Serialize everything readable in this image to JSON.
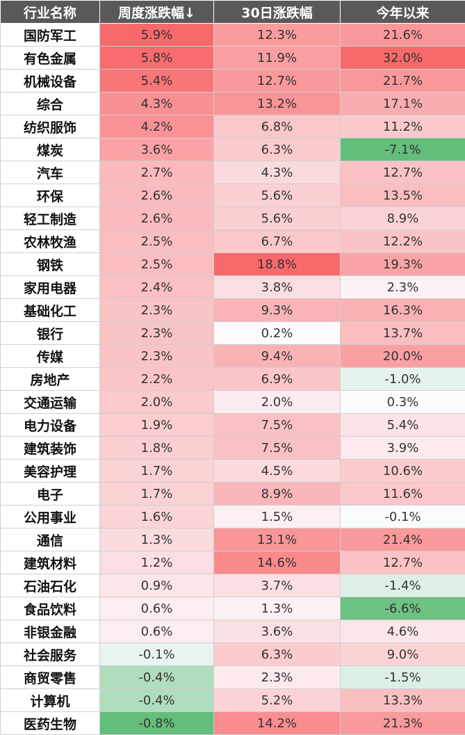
{
  "table": {
    "headers": [
      "行业名称",
      "周度涨跌幅↓",
      "30日涨跌幅",
      "今年以来"
    ],
    "rows": [
      [
        "国防军工",
        "5.9%",
        "12.3%",
        "21.6%"
      ],
      [
        "有色金属",
        "5.8%",
        "11.9%",
        "32.0%"
      ],
      [
        "机械设备",
        "5.4%",
        "12.7%",
        "21.7%"
      ],
      [
        "综合",
        "4.3%",
        "13.2%",
        "17.1%"
      ],
      [
        "纺织服饰",
        "4.2%",
        "6.8%",
        "11.2%"
      ],
      [
        "煤炭",
        "3.6%",
        "6.3%",
        "-7.1%"
      ],
      [
        "汽车",
        "2.7%",
        "4.3%",
        "12.7%"
      ],
      [
        "环保",
        "2.6%",
        "5.6%",
        "13.5%"
      ],
      [
        "轻工制造",
        "2.6%",
        "5.6%",
        "8.9%"
      ],
      [
        "农林牧渔",
        "2.5%",
        "6.7%",
        "12.2%"
      ],
      [
        "钢铁",
        "2.5%",
        "18.8%",
        "19.3%"
      ],
      [
        "家用电器",
        "2.4%",
        "3.8%",
        "2.3%"
      ],
      [
        "基础化工",
        "2.3%",
        "9.3%",
        "16.3%"
      ],
      [
        "银行",
        "2.3%",
        "0.2%",
        "13.7%"
      ],
      [
        "传媒",
        "2.3%",
        "9.4%",
        "20.0%"
      ],
      [
        "房地产",
        "2.2%",
        "6.9%",
        "-1.0%"
      ],
      [
        "交通运输",
        "2.0%",
        "2.0%",
        "0.3%"
      ],
      [
        "电力设备",
        "1.9%",
        "7.5%",
        "5.4%"
      ],
      [
        "建筑装饰",
        "1.8%",
        "7.5%",
        "3.9%"
      ],
      [
        "美容护理",
        "1.7%",
        "4.5%",
        "10.6%"
      ],
      [
        "电子",
        "1.7%",
        "8.9%",
        "11.6%"
      ],
      [
        "公用事业",
        "1.6%",
        "1.5%",
        "-0.1%"
      ],
      [
        "通信",
        "1.3%",
        "13.1%",
        "21.4%"
      ],
      [
        "建筑材料",
        "1.2%",
        "14.6%",
        "12.7%"
      ],
      [
        "石油石化",
        "0.9%",
        "3.7%",
        "-1.4%"
      ],
      [
        "食品饮料",
        "0.6%",
        "1.3%",
        "-6.6%"
      ],
      [
        "非银金融",
        "0.6%",
        "3.6%",
        "4.6%"
      ],
      [
        "社会服务",
        "-0.1%",
        "6.3%",
        "9.0%"
      ],
      [
        "商贸零售",
        "-0.4%",
        "2.3%",
        "-1.5%"
      ],
      [
        "计算机",
        "-0.4%",
        "5.2%",
        "13.3%"
      ],
      [
        "医药生物",
        "-0.8%",
        "14.2%",
        "21.3%"
      ]
    ]
  },
  "colors": {
    "header_bg": "#595959",
    "header_text": "#ffffff",
    "positive_max": "#f8696b",
    "neutral": "#fcfcff",
    "negative_max": "#63be7b"
  }
}
